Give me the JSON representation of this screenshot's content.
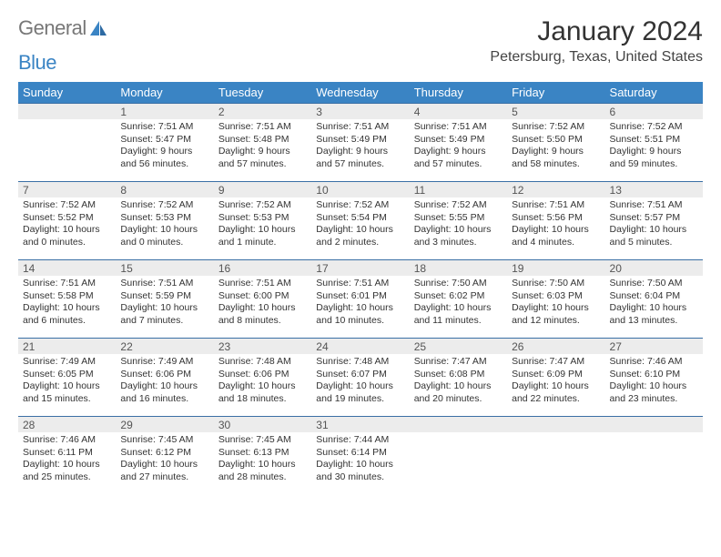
{
  "logo": {
    "text1": "General",
    "text2": "Blue"
  },
  "title": "January 2024",
  "location": "Petersburg, Texas, United States",
  "colors": {
    "header_bg": "#3a84c4",
    "header_text": "#ffffff",
    "daynum_bg": "#ececec",
    "row_border": "#3a6fa5",
    "body_text": "#333333",
    "logo_gray": "#777777",
    "logo_blue": "#3a84c4"
  },
  "daynames": [
    "Sunday",
    "Monday",
    "Tuesday",
    "Wednesday",
    "Thursday",
    "Friday",
    "Saturday"
  ],
  "weeks": [
    [
      null,
      {
        "n": "1",
        "sr": "7:51 AM",
        "ss": "5:47 PM",
        "dl": "9 hours and 56 minutes."
      },
      {
        "n": "2",
        "sr": "7:51 AM",
        "ss": "5:48 PM",
        "dl": "9 hours and 57 minutes."
      },
      {
        "n": "3",
        "sr": "7:51 AM",
        "ss": "5:49 PM",
        "dl": "9 hours and 57 minutes."
      },
      {
        "n": "4",
        "sr": "7:51 AM",
        "ss": "5:49 PM",
        "dl": "9 hours and 57 minutes."
      },
      {
        "n": "5",
        "sr": "7:52 AM",
        "ss": "5:50 PM",
        "dl": "9 hours and 58 minutes."
      },
      {
        "n": "6",
        "sr": "7:52 AM",
        "ss": "5:51 PM",
        "dl": "9 hours and 59 minutes."
      }
    ],
    [
      {
        "n": "7",
        "sr": "7:52 AM",
        "ss": "5:52 PM",
        "dl": "10 hours and 0 minutes."
      },
      {
        "n": "8",
        "sr": "7:52 AM",
        "ss": "5:53 PM",
        "dl": "10 hours and 0 minutes."
      },
      {
        "n": "9",
        "sr": "7:52 AM",
        "ss": "5:53 PM",
        "dl": "10 hours and 1 minute."
      },
      {
        "n": "10",
        "sr": "7:52 AM",
        "ss": "5:54 PM",
        "dl": "10 hours and 2 minutes."
      },
      {
        "n": "11",
        "sr": "7:52 AM",
        "ss": "5:55 PM",
        "dl": "10 hours and 3 minutes."
      },
      {
        "n": "12",
        "sr": "7:51 AM",
        "ss": "5:56 PM",
        "dl": "10 hours and 4 minutes."
      },
      {
        "n": "13",
        "sr": "7:51 AM",
        "ss": "5:57 PM",
        "dl": "10 hours and 5 minutes."
      }
    ],
    [
      {
        "n": "14",
        "sr": "7:51 AM",
        "ss": "5:58 PM",
        "dl": "10 hours and 6 minutes."
      },
      {
        "n": "15",
        "sr": "7:51 AM",
        "ss": "5:59 PM",
        "dl": "10 hours and 7 minutes."
      },
      {
        "n": "16",
        "sr": "7:51 AM",
        "ss": "6:00 PM",
        "dl": "10 hours and 8 minutes."
      },
      {
        "n": "17",
        "sr": "7:51 AM",
        "ss": "6:01 PM",
        "dl": "10 hours and 10 minutes."
      },
      {
        "n": "18",
        "sr": "7:50 AM",
        "ss": "6:02 PM",
        "dl": "10 hours and 11 minutes."
      },
      {
        "n": "19",
        "sr": "7:50 AM",
        "ss": "6:03 PM",
        "dl": "10 hours and 12 minutes."
      },
      {
        "n": "20",
        "sr": "7:50 AM",
        "ss": "6:04 PM",
        "dl": "10 hours and 13 minutes."
      }
    ],
    [
      {
        "n": "21",
        "sr": "7:49 AM",
        "ss": "6:05 PM",
        "dl": "10 hours and 15 minutes."
      },
      {
        "n": "22",
        "sr": "7:49 AM",
        "ss": "6:06 PM",
        "dl": "10 hours and 16 minutes."
      },
      {
        "n": "23",
        "sr": "7:48 AM",
        "ss": "6:06 PM",
        "dl": "10 hours and 18 minutes."
      },
      {
        "n": "24",
        "sr": "7:48 AM",
        "ss": "6:07 PM",
        "dl": "10 hours and 19 minutes."
      },
      {
        "n": "25",
        "sr": "7:47 AM",
        "ss": "6:08 PM",
        "dl": "10 hours and 20 minutes."
      },
      {
        "n": "26",
        "sr": "7:47 AM",
        "ss": "6:09 PM",
        "dl": "10 hours and 22 minutes."
      },
      {
        "n": "27",
        "sr": "7:46 AM",
        "ss": "6:10 PM",
        "dl": "10 hours and 23 minutes."
      }
    ],
    [
      {
        "n": "28",
        "sr": "7:46 AM",
        "ss": "6:11 PM",
        "dl": "10 hours and 25 minutes."
      },
      {
        "n": "29",
        "sr": "7:45 AM",
        "ss": "6:12 PM",
        "dl": "10 hours and 27 minutes."
      },
      {
        "n": "30",
        "sr": "7:45 AM",
        "ss": "6:13 PM",
        "dl": "10 hours and 28 minutes."
      },
      {
        "n": "31",
        "sr": "7:44 AM",
        "ss": "6:14 PM",
        "dl": "10 hours and 30 minutes."
      },
      null,
      null,
      null
    ]
  ],
  "labels": {
    "sunrise": "Sunrise:",
    "sunset": "Sunset:",
    "daylight": "Daylight:"
  }
}
